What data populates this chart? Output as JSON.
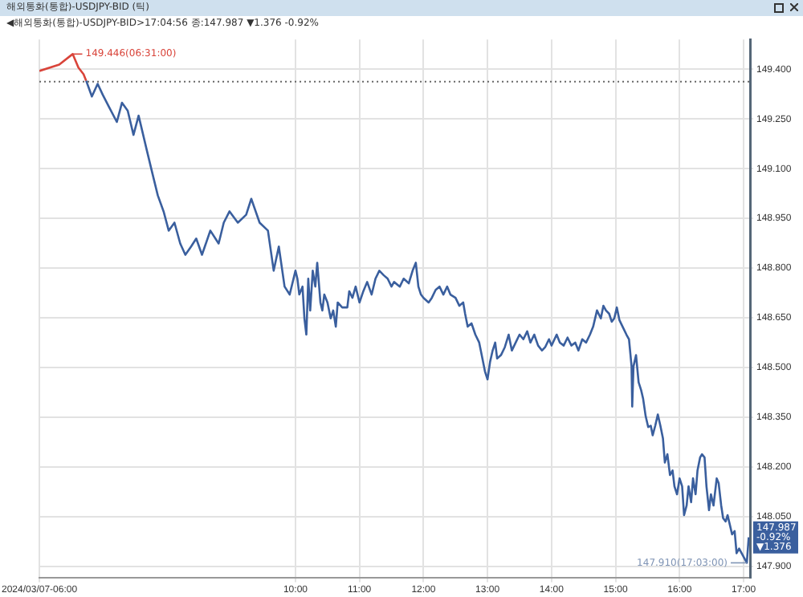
{
  "chart_data": {
    "type": "line",
    "title": "해외통화(통합)-USDJPY-BID (틱)",
    "subtitle": "◀해외통화(통합)-USDJPY-BID>17:04:56 종:147.987 ▼1.376 -0.92%",
    "series": [
      {
        "color": "#d9443a",
        "x": [
          6.0,
          6.31,
          6.52,
          6.61,
          6.69,
          6.73
        ],
        "values": [
          149.395,
          149.414,
          149.446,
          149.405,
          149.385,
          149.366
        ]
      },
      {
        "color": "#3a5f9e",
        "x": [
          6.73,
          6.82,
          6.91,
          6.99,
          7.08,
          7.21,
          7.29,
          7.38,
          7.47,
          7.55,
          7.68,
          7.77,
          7.85,
          7.94,
          8.02,
          8.11,
          8.2,
          8.28,
          8.37,
          8.45,
          8.54,
          8.67,
          8.8,
          8.88,
          8.97,
          9.1,
          9.23,
          9.31,
          9.44,
          9.57,
          9.66,
          9.74,
          9.83,
          9.91,
          10.0,
          10.03,
          10.06,
          10.11,
          10.14,
          10.17,
          10.2,
          10.23,
          10.27,
          10.31,
          10.34,
          10.39,
          10.42,
          10.45,
          10.5,
          10.55,
          10.59,
          10.63,
          10.66,
          10.73,
          10.81,
          10.84,
          10.89,
          10.94,
          11.0,
          11.06,
          11.12,
          11.19,
          11.25,
          11.31,
          11.38,
          11.44,
          11.5,
          11.54,
          11.63,
          11.69,
          11.77,
          11.83,
          11.88,
          11.92,
          11.96,
          12.0,
          12.08,
          12.13,
          12.19,
          12.25,
          12.31,
          12.37,
          12.42,
          12.5,
          12.56,
          12.62,
          12.65,
          12.69,
          12.75,
          12.81,
          12.87,
          12.92,
          12.96,
          13.0,
          13.04,
          13.08,
          13.12,
          13.15,
          13.21,
          13.27,
          13.33,
          13.38,
          13.44,
          13.5,
          13.56,
          13.62,
          13.67,
          13.73,
          13.79,
          13.85,
          13.9,
          13.96,
          14.0,
          14.08,
          14.13,
          14.19,
          14.25,
          14.31,
          14.37,
          14.42,
          14.48,
          14.54,
          14.6,
          14.65,
          14.71,
          14.77,
          14.81,
          14.85,
          14.9,
          14.94,
          14.98,
          15.02,
          15.06,
          15.11,
          15.17,
          15.21,
          15.25,
          15.26,
          15.28,
          15.32,
          15.36,
          15.4,
          15.43,
          15.47,
          15.51,
          15.55,
          15.58,
          15.62,
          15.66,
          15.7,
          15.74,
          15.77,
          15.81,
          15.85,
          15.89,
          15.92,
          15.96,
          16.0,
          16.04,
          16.07,
          16.11,
          16.14,
          16.18,
          16.21,
          16.25,
          16.28,
          16.32,
          16.35,
          16.39,
          16.42,
          16.46,
          16.49,
          16.53,
          16.58,
          16.61,
          16.65,
          16.68,
          16.72,
          16.75,
          16.79,
          16.82,
          16.86,
          16.89,
          16.93,
          17.05,
          17.08
        ],
        "values": [
          149.366,
          149.318,
          149.356,
          149.323,
          149.289,
          149.241,
          149.299,
          149.275,
          149.202,
          149.26,
          149.154,
          149.082,
          149.019,
          148.971,
          148.913,
          148.937,
          148.874,
          148.84,
          148.865,
          148.889,
          148.84,
          148.913,
          148.874,
          148.937,
          148.971,
          148.937,
          148.961,
          149.009,
          148.937,
          148.913,
          148.792,
          148.865,
          148.744,
          148.72,
          148.792,
          148.768,
          148.72,
          148.744,
          148.648,
          148.599,
          148.768,
          148.672,
          148.792,
          148.744,
          148.816,
          148.696,
          148.672,
          148.72,
          148.696,
          148.648,
          148.672,
          148.623,
          148.696,
          148.681,
          148.681,
          148.73,
          148.71,
          148.744,
          148.696,
          148.73,
          148.758,
          148.72,
          148.768,
          148.792,
          148.778,
          148.768,
          148.744,
          148.758,
          148.744,
          148.768,
          148.754,
          148.792,
          148.816,
          148.744,
          148.72,
          148.71,
          148.696,
          148.71,
          148.734,
          148.744,
          148.72,
          148.744,
          148.72,
          148.71,
          148.686,
          148.696,
          148.662,
          148.623,
          148.633,
          148.599,
          148.575,
          148.527,
          148.488,
          148.464,
          148.517,
          148.551,
          148.575,
          148.527,
          148.537,
          148.561,
          148.599,
          148.551,
          148.575,
          148.599,
          148.585,
          148.609,
          148.575,
          148.599,
          148.566,
          148.551,
          148.561,
          148.585,
          148.566,
          148.599,
          148.575,
          148.566,
          148.59,
          148.566,
          148.575,
          148.551,
          148.585,
          148.575,
          148.599,
          148.623,
          148.672,
          148.648,
          148.686,
          148.672,
          148.662,
          148.638,
          148.648,
          148.681,
          148.643,
          148.623,
          148.599,
          148.585,
          148.503,
          148.382,
          148.503,
          148.537,
          148.455,
          148.431,
          148.406,
          148.353,
          148.32,
          148.324,
          148.295,
          148.324,
          148.358,
          148.324,
          148.286,
          148.213,
          148.238,
          148.175,
          148.189,
          148.141,
          148.117,
          148.165,
          148.141,
          148.054,
          148.083,
          148.141,
          148.093,
          148.165,
          148.117,
          148.189,
          148.228,
          148.238,
          148.228,
          148.141,
          148.069,
          148.117,
          148.083,
          148.165,
          148.151,
          148.083,
          148.045,
          148.035,
          148.054,
          148.021,
          147.996,
          148.006,
          147.939,
          147.953,
          147.91,
          147.987
        ]
      }
    ],
    "xlim": [
      6,
      17.1
    ],
    "xticks": [
      {
        "value": 6,
        "label": "2024/03/07-06:00"
      },
      {
        "value": 10,
        "label": "10:00"
      },
      {
        "value": 11,
        "label": "11:00"
      },
      {
        "value": 12,
        "label": "12:00"
      },
      {
        "value": 13,
        "label": "13:00"
      },
      {
        "value": 14,
        "label": "14:00"
      },
      {
        "value": 15,
        "label": "15:00"
      },
      {
        "value": 16,
        "label": "16:00"
      },
      {
        "value": 17,
        "label": "17:00"
      }
    ],
    "ylim": [
      147.866,
      149.49
    ],
    "yticks": [
      {
        "value": 147.9,
        "label": "147.900"
      },
      {
        "value": 148.05,
        "label": "148.050"
      },
      {
        "value": 148.2,
        "label": "148.200"
      },
      {
        "value": 148.35,
        "label": "148.350"
      },
      {
        "value": 148.5,
        "label": "148.500"
      },
      {
        "value": 148.65,
        "label": "148.650"
      },
      {
        "value": 148.8,
        "label": "148.800"
      },
      {
        "value": 148.95,
        "label": "148.950"
      },
      {
        "value": 149.1,
        "label": "149.100"
      },
      {
        "value": 149.25,
        "label": "149.250"
      },
      {
        "value": 149.4,
        "label": "149.400"
      }
    ],
    "ref_lines": [
      {
        "axis": "y",
        "value": 149.363,
        "line_style": "dotted",
        "color": "#666666"
      }
    ],
    "annotations": [
      {
        "text": "149.446(06:31:00)",
        "x": 6.52,
        "y": 149.446
      },
      {
        "text": "147.910(17:03:00)",
        "x": 17.05,
        "y": 147.91
      },
      "147.987 -0.92% ▼1.376"
    ],
    "grid": true,
    "legend": false,
    "marker": "none",
    "line_style": "solid"
  }
}
